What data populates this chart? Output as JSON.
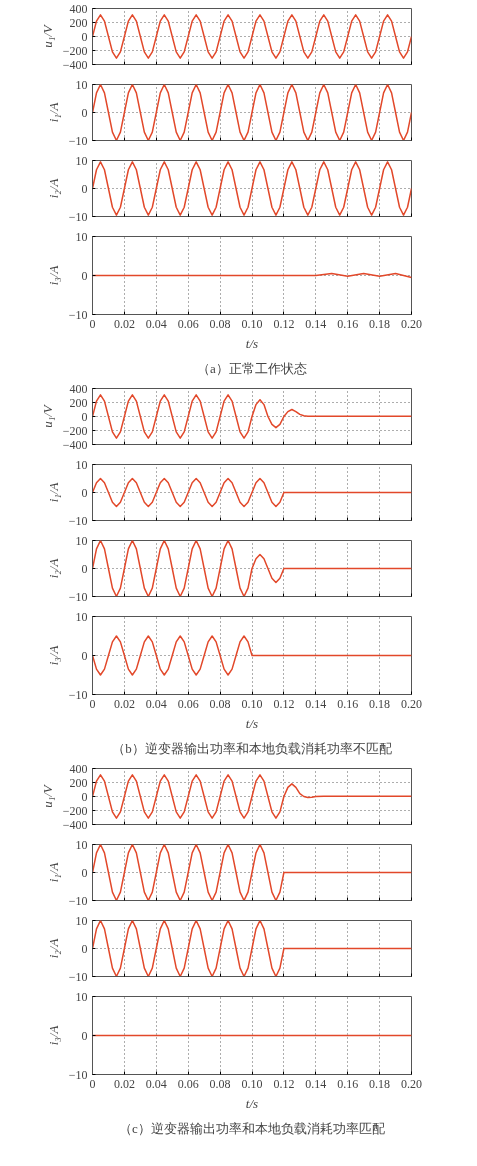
{
  "chart_data": [
    {
      "type": "line",
      "ylabel": "u₁/V",
      "color": "#e2482a",
      "tick_labels": "y",
      "grid": true,
      "xlim": [
        0,
        0.2
      ],
      "ylim": [
        -400,
        400
      ],
      "yticks": [
        -400,
        -200,
        0,
        200,
        400
      ],
      "xticks": [
        {
          "value": 0,
          "label": null
        },
        {
          "value": 0.02,
          "label": null
        },
        {
          "value": 0.04,
          "label": null
        },
        {
          "value": 0.06,
          "label": null
        },
        {
          "value": 0.08,
          "label": null
        },
        {
          "value": 0.1,
          "label": null
        },
        {
          "value": 0.12,
          "label": null
        },
        {
          "value": 0.14,
          "label": null
        },
        {
          "value": 0.16,
          "label": null
        },
        {
          "value": 0.18,
          "label": null
        },
        {
          "value": 0.2,
          "label": null
        }
      ],
      "x": [
        0,
        0.0025,
        0.005,
        0.0075,
        0.01,
        0.0125,
        0.015,
        0.0175,
        0.02,
        0.0225,
        0.025,
        0.0275,
        0.03,
        0.0325,
        0.035,
        0.0375,
        0.04,
        0.0425,
        0.045,
        0.0475,
        0.05,
        0.0525,
        0.055,
        0.0575,
        0.06,
        0.0625,
        0.065,
        0.0675,
        0.07,
        0.0725,
        0.075,
        0.0775,
        0.08,
        0.0825,
        0.085,
        0.0875,
        0.09,
        0.0925,
        0.095,
        0.0975,
        0.1,
        0.1025,
        0.105,
        0.1075,
        0.11,
        0.1125,
        0.115,
        0.1175,
        0.12,
        0.1225,
        0.125,
        0.1275,
        0.13,
        0.1325,
        0.135,
        0.1375,
        0.14,
        0.1425,
        0.145,
        0.1475,
        0.15,
        0.1525,
        0.155,
        0.1575,
        0.16,
        0.1625,
        0.165,
        0.1675,
        0.17,
        0.1725,
        0.175,
        0.1775,
        0.18,
        0.1825,
        0.185,
        0.1875,
        0.19,
        0.1925,
        0.195,
        0.1975,
        0.2
      ],
      "values": [
        0,
        220,
        310,
        220,
        0,
        -220,
        -310,
        -220,
        0,
        220,
        310,
        220,
        0,
        -220,
        -310,
        -220,
        0,
        220,
        310,
        220,
        0,
        -220,
        -310,
        -220,
        0,
        220,
        310,
        220,
        0,
        -220,
        -310,
        -220,
        0,
        220,
        310,
        220,
        0,
        -220,
        -310,
        -220,
        0,
        220,
        310,
        220,
        0,
        -220,
        -310,
        -220,
        0,
        220,
        310,
        220,
        0,
        -220,
        -310,
        -220,
        0,
        220,
        310,
        220,
        0,
        -220,
        -310,
        -220,
        0,
        220,
        310,
        220,
        0,
        -220,
        -310,
        -220,
        0,
        220,
        310,
        220,
        0,
        -220,
        -310,
        -220,
        0
      ]
    },
    {
      "type": "line",
      "ylabel": "i₁/A",
      "color": "#e2482a",
      "tick_labels": "y",
      "grid": true,
      "xlim": [
        0,
        0.2
      ],
      "ylim": [
        -10,
        10
      ],
      "yticks": [
        -10,
        0,
        10
      ],
      "xticks": [
        {
          "value": 0,
          "label": null
        },
        {
          "value": 0.02,
          "label": null
        },
        {
          "value": 0.04,
          "label": null
        },
        {
          "value": 0.06,
          "label": null
        },
        {
          "value": 0.08,
          "label": null
        },
        {
          "value": 0.1,
          "label": null
        },
        {
          "value": 0.12,
          "label": null
        },
        {
          "value": 0.14,
          "label": null
        },
        {
          "value": 0.16,
          "label": null
        },
        {
          "value": 0.18,
          "label": null
        },
        {
          "value": 0.2,
          "label": null
        }
      ],
      "x": [
        0,
        0.0025,
        0.005,
        0.0075,
        0.01,
        0.0125,
        0.015,
        0.0175,
        0.02,
        0.0225,
        0.025,
        0.0275,
        0.03,
        0.0325,
        0.035,
        0.0375,
        0.04,
        0.0425,
        0.045,
        0.0475,
        0.05,
        0.0525,
        0.055,
        0.0575,
        0.06,
        0.0625,
        0.065,
        0.0675,
        0.07,
        0.0725,
        0.075,
        0.0775,
        0.08,
        0.0825,
        0.085,
        0.0875,
        0.09,
        0.0925,
        0.095,
        0.0975,
        0.1,
        0.1025,
        0.105,
        0.1075,
        0.11,
        0.1125,
        0.115,
        0.1175,
        0.12,
        0.1225,
        0.125,
        0.1275,
        0.13,
        0.1325,
        0.135,
        0.1375,
        0.14,
        0.1425,
        0.145,
        0.1475,
        0.15,
        0.1525,
        0.155,
        0.1575,
        0.16,
        0.1625,
        0.165,
        0.1675,
        0.17,
        0.1725,
        0.175,
        0.1775,
        0.18,
        0.1825,
        0.185,
        0.1875,
        0.19,
        0.1925,
        0.195,
        0.1975,
        0.2
      ],
      "values": [
        0,
        7,
        10,
        7,
        0,
        -7,
        -10,
        -7,
        0,
        7,
        10,
        7,
        0,
        -7,
        -10,
        -7,
        0,
        7,
        10,
        7,
        0,
        -7,
        -10,
        -7,
        0,
        7,
        10,
        7,
        0,
        -7,
        -10,
        -7,
        0,
        7,
        10,
        7,
        0,
        -7,
        -10,
        -7,
        0,
        7,
        10,
        7,
        0,
        -7,
        -10,
        -7,
        0,
        7,
        10,
        7,
        0,
        -7,
        -10,
        -7,
        0,
        7,
        10,
        7,
        0,
        -7,
        -10,
        -7,
        0,
        7,
        10,
        7,
        0,
        -7,
        -10,
        -7,
        0,
        7,
        10,
        7,
        0,
        -7,
        -10,
        -7,
        0
      ]
    },
    {
      "type": "line",
      "ylabel": "i₂/A",
      "color": "#e2482a",
      "tick_labels": "y",
      "grid": true,
      "xlim": [
        0,
        0.2
      ],
      "ylim": [
        -10,
        10
      ],
      "yticks": [
        -10,
        0,
        10
      ],
      "xticks": [
        {
          "value": 0,
          "label": null
        },
        {
          "value": 0.02,
          "label": null
        },
        {
          "value": 0.04,
          "label": null
        },
        {
          "value": 0.06,
          "label": null
        },
        {
          "value": 0.08,
          "label": null
        },
        {
          "value": 0.1,
          "label": null
        },
        {
          "value": 0.12,
          "label": null
        },
        {
          "value": 0.14,
          "label": null
        },
        {
          "value": 0.16,
          "label": null
        },
        {
          "value": 0.18,
          "label": null
        },
        {
          "value": 0.2,
          "label": null
        }
      ],
      "x": [
        0,
        0.0025,
        0.005,
        0.0075,
        0.01,
        0.0125,
        0.015,
        0.0175,
        0.02,
        0.0225,
        0.025,
        0.0275,
        0.03,
        0.0325,
        0.035,
        0.0375,
        0.04,
        0.0425,
        0.045,
        0.0475,
        0.05,
        0.0525,
        0.055,
        0.0575,
        0.06,
        0.0625,
        0.065,
        0.0675,
        0.07,
        0.0725,
        0.075,
        0.0775,
        0.08,
        0.0825,
        0.085,
        0.0875,
        0.09,
        0.0925,
        0.095,
        0.0975,
        0.1,
        0.1025,
        0.105,
        0.1075,
        0.11,
        0.1125,
        0.115,
        0.1175,
        0.12,
        0.1225,
        0.125,
        0.1275,
        0.13,
        0.1325,
        0.135,
        0.1375,
        0.14,
        0.1425,
        0.145,
        0.1475,
        0.15,
        0.1525,
        0.155,
        0.1575,
        0.16,
        0.1625,
        0.165,
        0.1675,
        0.17,
        0.1725,
        0.175,
        0.1775,
        0.18,
        0.1825,
        0.185,
        0.1875,
        0.19,
        0.1925,
        0.195,
        0.1975,
        0.2
      ],
      "values": [
        0,
        6.7,
        9.5,
        6.7,
        0,
        -6.7,
        -9.5,
        -6.7,
        0,
        6.7,
        9.5,
        6.7,
        0,
        -6.7,
        -9.5,
        -6.7,
        0,
        6.7,
        9.5,
        6.7,
        0,
        -6.7,
        -9.5,
        -6.7,
        0,
        6.7,
        9.5,
        6.7,
        0,
        -6.7,
        -9.5,
        -6.7,
        0,
        6.7,
        9.5,
        6.7,
        0,
        -6.7,
        -9.5,
        -6.7,
        0,
        6.7,
        9.5,
        6.7,
        0,
        -6.7,
        -9.5,
        -6.7,
        0,
        6.7,
        9.5,
        6.7,
        0,
        -6.7,
        -9.5,
        -6.7,
        0,
        6.7,
        9.5,
        6.7,
        0,
        -6.7,
        -9.5,
        -6.7,
        0,
        6.7,
        9.5,
        6.7,
        0,
        -6.7,
        -9.5,
        -6.7,
        0,
        6.7,
        9.5,
        6.7,
        0,
        -6.7,
        -9.5,
        -6.7,
        0
      ]
    },
    {
      "type": "line",
      "ylabel": "i₃/A",
      "xlabel": "t/s",
      "annotations": [
        "（a）正常工作状态"
      ],
      "color": "#e2482a",
      "grid": true,
      "xlim": [
        0,
        0.2
      ],
      "ylim": [
        -10,
        10
      ],
      "yticks": [
        -10,
        0,
        10
      ],
      "xticks": [
        0,
        0.02,
        0.04,
        0.06,
        0.08,
        {
          "value": 0.1,
          "label": "0.10"
        },
        0.12,
        0.14,
        0.16,
        0.18,
        {
          "value": 0.2,
          "label": "0.20"
        }
      ],
      "x": [
        0,
        0.14,
        0.15,
        0.16,
        0.17,
        0.18,
        0.19,
        0.2
      ],
      "values": [
        0,
        0,
        0.5,
        -0.2,
        0.5,
        -0.2,
        0.5,
        -0.5
      ]
    },
    {
      "type": "line",
      "ylabel": "u₁/V",
      "color": "#e2482a",
      "tick_labels": "y",
      "grid": true,
      "xlim": [
        0,
        0.2
      ],
      "ylim": [
        -400,
        400
      ],
      "yticks": [
        -400,
        -200,
        0,
        200,
        400
      ],
      "xticks": [
        {
          "value": 0,
          "label": null
        },
        {
          "value": 0.02,
          "label": null
        },
        {
          "value": 0.04,
          "label": null
        },
        {
          "value": 0.06,
          "label": null
        },
        {
          "value": 0.08,
          "label": null
        },
        {
          "value": 0.1,
          "label": null
        },
        {
          "value": 0.12,
          "label": null
        },
        {
          "value": 0.14,
          "label": null
        },
        {
          "value": 0.16,
          "label": null
        },
        {
          "value": 0.18,
          "label": null
        },
        {
          "value": 0.2,
          "label": null
        }
      ],
      "x": [
        0,
        0.0025,
        0.005,
        0.0075,
        0.01,
        0.0125,
        0.015,
        0.0175,
        0.02,
        0.0225,
        0.025,
        0.0275,
        0.03,
        0.0325,
        0.035,
        0.0375,
        0.04,
        0.0425,
        0.045,
        0.0475,
        0.05,
        0.0525,
        0.055,
        0.0575,
        0.06,
        0.0625,
        0.065,
        0.0675,
        0.07,
        0.0725,
        0.075,
        0.0775,
        0.08,
        0.0825,
        0.085,
        0.0875,
        0.09,
        0.0925,
        0.095,
        0.0975,
        0.1,
        0.1025,
        0.105,
        0.1075,
        0.11,
        0.1125,
        0.115,
        0.1175,
        0.12,
        0.1225,
        0.125,
        0.1275,
        0.13,
        0.1325,
        0.135,
        0.2
      ],
      "values": [
        0,
        220,
        310,
        220,
        0,
        -220,
        -310,
        -220,
        0,
        220,
        310,
        220,
        0,
        -220,
        -310,
        -220,
        0,
        220,
        310,
        220,
        0,
        -220,
        -310,
        -220,
        0,
        220,
        310,
        220,
        0,
        -220,
        -310,
        -220,
        0,
        220,
        310,
        220,
        0,
        -220,
        -310,
        -220,
        0,
        170,
        240,
        170,
        0,
        -113,
        -160,
        -113,
        0,
        70,
        100,
        70,
        30,
        10,
        5,
        5
      ]
    },
    {
      "type": "line",
      "ylabel": "i₁/A",
      "color": "#e2482a",
      "tick_labels": "y",
      "grid": true,
      "xlim": [
        0,
        0.2
      ],
      "ylim": [
        -10,
        10
      ],
      "yticks": [
        -10,
        0,
        10
      ],
      "xticks": [
        {
          "value": 0,
          "label": null
        },
        {
          "value": 0.02,
          "label": null
        },
        {
          "value": 0.04,
          "label": null
        },
        {
          "value": 0.06,
          "label": null
        },
        {
          "value": 0.08,
          "label": null
        },
        {
          "value": 0.1,
          "label": null
        },
        {
          "value": 0.12,
          "label": null
        },
        {
          "value": 0.14,
          "label": null
        },
        {
          "value": 0.16,
          "label": null
        },
        {
          "value": 0.18,
          "label": null
        },
        {
          "value": 0.2,
          "label": null
        }
      ],
      "x": [
        0,
        0.0025,
        0.005,
        0.0075,
        0.01,
        0.0125,
        0.015,
        0.0175,
        0.02,
        0.0225,
        0.025,
        0.0275,
        0.03,
        0.0325,
        0.035,
        0.0375,
        0.04,
        0.0425,
        0.045,
        0.0475,
        0.05,
        0.0525,
        0.055,
        0.0575,
        0.06,
        0.0625,
        0.065,
        0.0675,
        0.07,
        0.0725,
        0.075,
        0.0775,
        0.08,
        0.0825,
        0.085,
        0.0875,
        0.09,
        0.0925,
        0.095,
        0.0975,
        0.1,
        0.1025,
        0.105,
        0.1075,
        0.11,
        0.1125,
        0.115,
        0.1175,
        0.12,
        0.2
      ],
      "values": [
        0,
        3.5,
        5,
        3.5,
        0,
        -3.5,
        -5,
        -3.5,
        0,
        3.5,
        5,
        3.5,
        0,
        -3.5,
        -5,
        -3.5,
        0,
        3.5,
        5,
        3.5,
        0,
        -3.5,
        -5,
        -3.5,
        0,
        3.5,
        5,
        3.5,
        0,
        -3.5,
        -5,
        -3.5,
        0,
        3.5,
        5,
        3.5,
        0,
        -3.5,
        -5,
        -3.5,
        0,
        3.5,
        5,
        3.5,
        0,
        -3.5,
        -5,
        -3.5,
        0,
        0
      ]
    },
    {
      "type": "line",
      "ylabel": "i₂/A",
      "color": "#e2482a",
      "tick_labels": "y",
      "grid": true,
      "xlim": [
        0,
        0.2
      ],
      "ylim": [
        -10,
        10
      ],
      "yticks": [
        -10,
        0,
        10
      ],
      "xticks": [
        {
          "value": 0,
          "label": null
        },
        {
          "value": 0.02,
          "label": null
        },
        {
          "value": 0.04,
          "label": null
        },
        {
          "value": 0.06,
          "label": null
        },
        {
          "value": 0.08,
          "label": null
        },
        {
          "value": 0.1,
          "label": null
        },
        {
          "value": 0.12,
          "label": null
        },
        {
          "value": 0.14,
          "label": null
        },
        {
          "value": 0.16,
          "label": null
        },
        {
          "value": 0.18,
          "label": null
        },
        {
          "value": 0.2,
          "label": null
        }
      ],
      "x": [
        0,
        0.0025,
        0.005,
        0.0075,
        0.01,
        0.0125,
        0.015,
        0.0175,
        0.02,
        0.0225,
        0.025,
        0.0275,
        0.03,
        0.0325,
        0.035,
        0.0375,
        0.04,
        0.0425,
        0.045,
        0.0475,
        0.05,
        0.0525,
        0.055,
        0.0575,
        0.06,
        0.0625,
        0.065,
        0.0675,
        0.07,
        0.0725,
        0.075,
        0.0775,
        0.08,
        0.0825,
        0.085,
        0.0875,
        0.09,
        0.0925,
        0.095,
        0.0975,
        0.1,
        0.1025,
        0.105,
        0.1075,
        0.11,
        0.1125,
        0.115,
        0.1175,
        0.12,
        0.2
      ],
      "values": [
        0,
        7,
        10,
        7,
        0,
        -7,
        -10,
        -7,
        0,
        7,
        10,
        7,
        0,
        -7,
        -10,
        -7,
        0,
        7,
        10,
        7,
        0,
        -7,
        -10,
        -7,
        0,
        7,
        10,
        7,
        0,
        -7,
        -10,
        -7,
        0,
        7,
        10,
        7,
        0,
        -7,
        -10,
        -7,
        0,
        3.5,
        5,
        3.5,
        0,
        -3.5,
        -5,
        -3.5,
        0,
        0
      ]
    },
    {
      "type": "line",
      "ylabel": "i₃/A",
      "xlabel": "t/s",
      "annotations": [
        "（b）逆变器输出功率和本地负载消耗功率不匹配"
      ],
      "color": "#e2482a",
      "grid": true,
      "xlim": [
        0,
        0.2
      ],
      "ylim": [
        -10,
        10
      ],
      "yticks": [
        -10,
        0,
        10
      ],
      "xticks": [
        0,
        0.02,
        0.04,
        0.06,
        0.08,
        {
          "value": 0.1,
          "label": "0.10"
        },
        0.12,
        0.14,
        0.16,
        0.18,
        {
          "value": 0.2,
          "label": "0.20"
        }
      ],
      "x": [
        0,
        0.0025,
        0.005,
        0.0075,
        0.01,
        0.0125,
        0.015,
        0.0175,
        0.02,
        0.0225,
        0.025,
        0.0275,
        0.03,
        0.0325,
        0.035,
        0.0375,
        0.04,
        0.0425,
        0.045,
        0.0475,
        0.05,
        0.0525,
        0.055,
        0.0575,
        0.06,
        0.0625,
        0.065,
        0.0675,
        0.07,
        0.0725,
        0.075,
        0.0775,
        0.08,
        0.0825,
        0.085,
        0.0875,
        0.09,
        0.0925,
        0.095,
        0.0975,
        0.1,
        0.2
      ],
      "values": [
        0,
        -3.5,
        -5,
        -3.5,
        0,
        3.5,
        5,
        3.5,
        0,
        -3.5,
        -5,
        -3.5,
        0,
        3.5,
        5,
        3.5,
        0,
        -3.5,
        -5,
        -3.5,
        0,
        3.5,
        5,
        3.5,
        0,
        -3.5,
        -5,
        -3.5,
        0,
        3.5,
        5,
        3.5,
        0,
        -3.5,
        -5,
        -3.5,
        0,
        3.5,
        5,
        3.5,
        0,
        0
      ]
    },
    {
      "type": "line",
      "ylabel": "u₁/V",
      "color": "#e2482a",
      "tick_labels": "y",
      "grid": true,
      "xlim": [
        0,
        0.2
      ],
      "ylim": [
        -400,
        400
      ],
      "yticks": [
        -400,
        -200,
        0,
        200,
        400
      ],
      "xticks": [
        {
          "value": 0,
          "label": null
        },
        {
          "value": 0.02,
          "label": null
        },
        {
          "value": 0.04,
          "label": null
        },
        {
          "value": 0.06,
          "label": null
        },
        {
          "value": 0.08,
          "label": null
        },
        {
          "value": 0.1,
          "label": null
        },
        {
          "value": 0.12,
          "label": null
        },
        {
          "value": 0.14,
          "label": null
        },
        {
          "value": 0.16,
          "label": null
        },
        {
          "value": 0.18,
          "label": null
        },
        {
          "value": 0.2,
          "label": null
        }
      ],
      "x": [
        0,
        0.0025,
        0.005,
        0.0075,
        0.01,
        0.0125,
        0.015,
        0.0175,
        0.02,
        0.0225,
        0.025,
        0.0275,
        0.03,
        0.0325,
        0.035,
        0.0375,
        0.04,
        0.0425,
        0.045,
        0.0475,
        0.05,
        0.0525,
        0.055,
        0.0575,
        0.06,
        0.0625,
        0.065,
        0.0675,
        0.07,
        0.0725,
        0.075,
        0.0775,
        0.08,
        0.0825,
        0.085,
        0.0875,
        0.09,
        0.0925,
        0.095,
        0.0975,
        0.1,
        0.1025,
        0.105,
        0.1075,
        0.11,
        0.1125,
        0.115,
        0.1175,
        0.12,
        0.1225,
        0.125,
        0.1275,
        0.13,
        0.1325,
        0.135,
        0.1375,
        0.14,
        0.145,
        0.2
      ],
      "values": [
        0,
        220,
        310,
        220,
        0,
        -220,
        -310,
        -220,
        0,
        220,
        310,
        220,
        0,
        -220,
        -310,
        -220,
        0,
        220,
        310,
        220,
        0,
        -220,
        -310,
        -220,
        0,
        220,
        310,
        220,
        0,
        -220,
        -310,
        -220,
        0,
        220,
        310,
        220,
        0,
        -220,
        -310,
        -220,
        0,
        220,
        310,
        220,
        0,
        -220,
        -310,
        -220,
        0,
        130,
        180,
        130,
        40,
        0,
        -15,
        -10,
        0,
        5,
        5
      ]
    },
    {
      "type": "line",
      "ylabel": "i₁/A",
      "color": "#e2482a",
      "tick_labels": "y",
      "grid": true,
      "xlim": [
        0,
        0.2
      ],
      "ylim": [
        -10,
        10
      ],
      "yticks": [
        -10,
        0,
        10
      ],
      "xticks": [
        {
          "value": 0,
          "label": null
        },
        {
          "value": 0.02,
          "label": null
        },
        {
          "value": 0.04,
          "label": null
        },
        {
          "value": 0.06,
          "label": null
        },
        {
          "value": 0.08,
          "label": null
        },
        {
          "value": 0.1,
          "label": null
        },
        {
          "value": 0.12,
          "label": null
        },
        {
          "value": 0.14,
          "label": null
        },
        {
          "value": 0.16,
          "label": null
        },
        {
          "value": 0.18,
          "label": null
        },
        {
          "value": 0.2,
          "label": null
        }
      ],
      "x": [
        0,
        0.0025,
        0.005,
        0.0075,
        0.01,
        0.0125,
        0.015,
        0.0175,
        0.02,
        0.0225,
        0.025,
        0.0275,
        0.03,
        0.0325,
        0.035,
        0.0375,
        0.04,
        0.0425,
        0.045,
        0.0475,
        0.05,
        0.0525,
        0.055,
        0.0575,
        0.06,
        0.0625,
        0.065,
        0.0675,
        0.07,
        0.0725,
        0.075,
        0.0775,
        0.08,
        0.0825,
        0.085,
        0.0875,
        0.09,
        0.0925,
        0.095,
        0.0975,
        0.1,
        0.1025,
        0.105,
        0.1075,
        0.11,
        0.1125,
        0.115,
        0.1175,
        0.12,
        0.2
      ],
      "values": [
        0,
        7,
        10,
        7,
        0,
        -7,
        -10,
        -7,
        0,
        7,
        10,
        7,
        0,
        -7,
        -10,
        -7,
        0,
        7,
        10,
        7,
        0,
        -7,
        -10,
        -7,
        0,
        7,
        10,
        7,
        0,
        -7,
        -10,
        -7,
        0,
        7,
        10,
        7,
        0,
        -7,
        -10,
        -7,
        0,
        7,
        10,
        7,
        0,
        -7,
        -10,
        -7,
        0,
        0
      ]
    },
    {
      "type": "line",
      "ylabel": "i₂/A",
      "color": "#e2482a",
      "tick_labels": "y",
      "grid": true,
      "xlim": [
        0,
        0.2
      ],
      "ylim": [
        -10,
        10
      ],
      "yticks": [
        -10,
        0,
        10
      ],
      "xticks": [
        {
          "value": 0,
          "label": null
        },
        {
          "value": 0.02,
          "label": null
        },
        {
          "value": 0.04,
          "label": null
        },
        {
          "value": 0.06,
          "label": null
        },
        {
          "value": 0.08,
          "label": null
        },
        {
          "value": 0.1,
          "label": null
        },
        {
          "value": 0.12,
          "label": null
        },
        {
          "value": 0.14,
          "label": null
        },
        {
          "value": 0.16,
          "label": null
        },
        {
          "value": 0.18,
          "label": null
        },
        {
          "value": 0.2,
          "label": null
        }
      ],
      "x": [
        0,
        0.0025,
        0.005,
        0.0075,
        0.01,
        0.0125,
        0.015,
        0.0175,
        0.02,
        0.0225,
        0.025,
        0.0275,
        0.03,
        0.0325,
        0.035,
        0.0375,
        0.04,
        0.0425,
        0.045,
        0.0475,
        0.05,
        0.0525,
        0.055,
        0.0575,
        0.06,
        0.0625,
        0.065,
        0.0675,
        0.07,
        0.0725,
        0.075,
        0.0775,
        0.08,
        0.0825,
        0.085,
        0.0875,
        0.09,
        0.0925,
        0.095,
        0.0975,
        0.1,
        0.1025,
        0.105,
        0.1075,
        0.11,
        0.1125,
        0.115,
        0.1175,
        0.12,
        0.2
      ],
      "values": [
        0,
        7,
        10,
        7,
        0,
        -7,
        -10,
        -7,
        0,
        7,
        10,
        7,
        0,
        -7,
        -10,
        -7,
        0,
        7,
        10,
        7,
        0,
        -7,
        -10,
        -7,
        0,
        7,
        10,
        7,
        0,
        -7,
        -10,
        -7,
        0,
        7,
        10,
        7,
        0,
        -7,
        -10,
        -7,
        0,
        7,
        10,
        7,
        0,
        -7,
        -10,
        -7,
        0,
        0
      ]
    },
    {
      "type": "line",
      "ylabel": "i₃/A",
      "xlabel": "t/s",
      "annotations": [
        "（c）逆变器输出功率和本地负载消耗功率匹配"
      ],
      "color": "#e2482a",
      "grid": true,
      "xlim": [
        0,
        0.2
      ],
      "ylim": [
        -10,
        10
      ],
      "yticks": [
        -10,
        0,
        10
      ],
      "xticks": [
        0,
        0.02,
        0.04,
        0.06,
        0.08,
        {
          "value": 0.1,
          "label": "0.10"
        },
        0.12,
        0.14,
        0.16,
        0.18,
        {
          "value": 0.2,
          "label": "0.20"
        }
      ],
      "x": [
        0,
        0.2
      ],
      "values": [
        0,
        0
      ]
    }
  ]
}
